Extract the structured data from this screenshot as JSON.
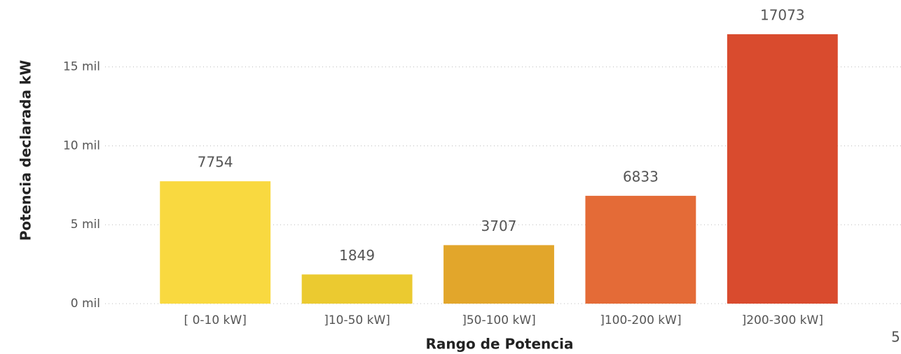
{
  "chart_data": {
    "type": "bar",
    "categories": [
      "[ 0-10 kW]",
      "]10-50 kW]",
      "]50-100 kW]",
      "]100-200 kW]",
      "]200-300 kW]"
    ],
    "values": [
      7754,
      1849,
      3707,
      6833,
      17073
    ],
    "colors": [
      "#f9d940",
      "#ebca30",
      "#e2a62b",
      "#e46b37",
      "#d94b2e"
    ],
    "x_label": "Rango de Potencia",
    "y_label": "Potencia declarada kW",
    "ylim": [
      0,
      18000
    ],
    "yticks": [
      {
        "value": 0,
        "label": "0 mil"
      },
      {
        "value": 5000,
        "label": "5 mil"
      },
      {
        "value": 10000,
        "label": "10 mil"
      },
      {
        "value": 15000,
        "label": "15 mil"
      }
    ],
    "grid": true,
    "corner_text": "5"
  }
}
